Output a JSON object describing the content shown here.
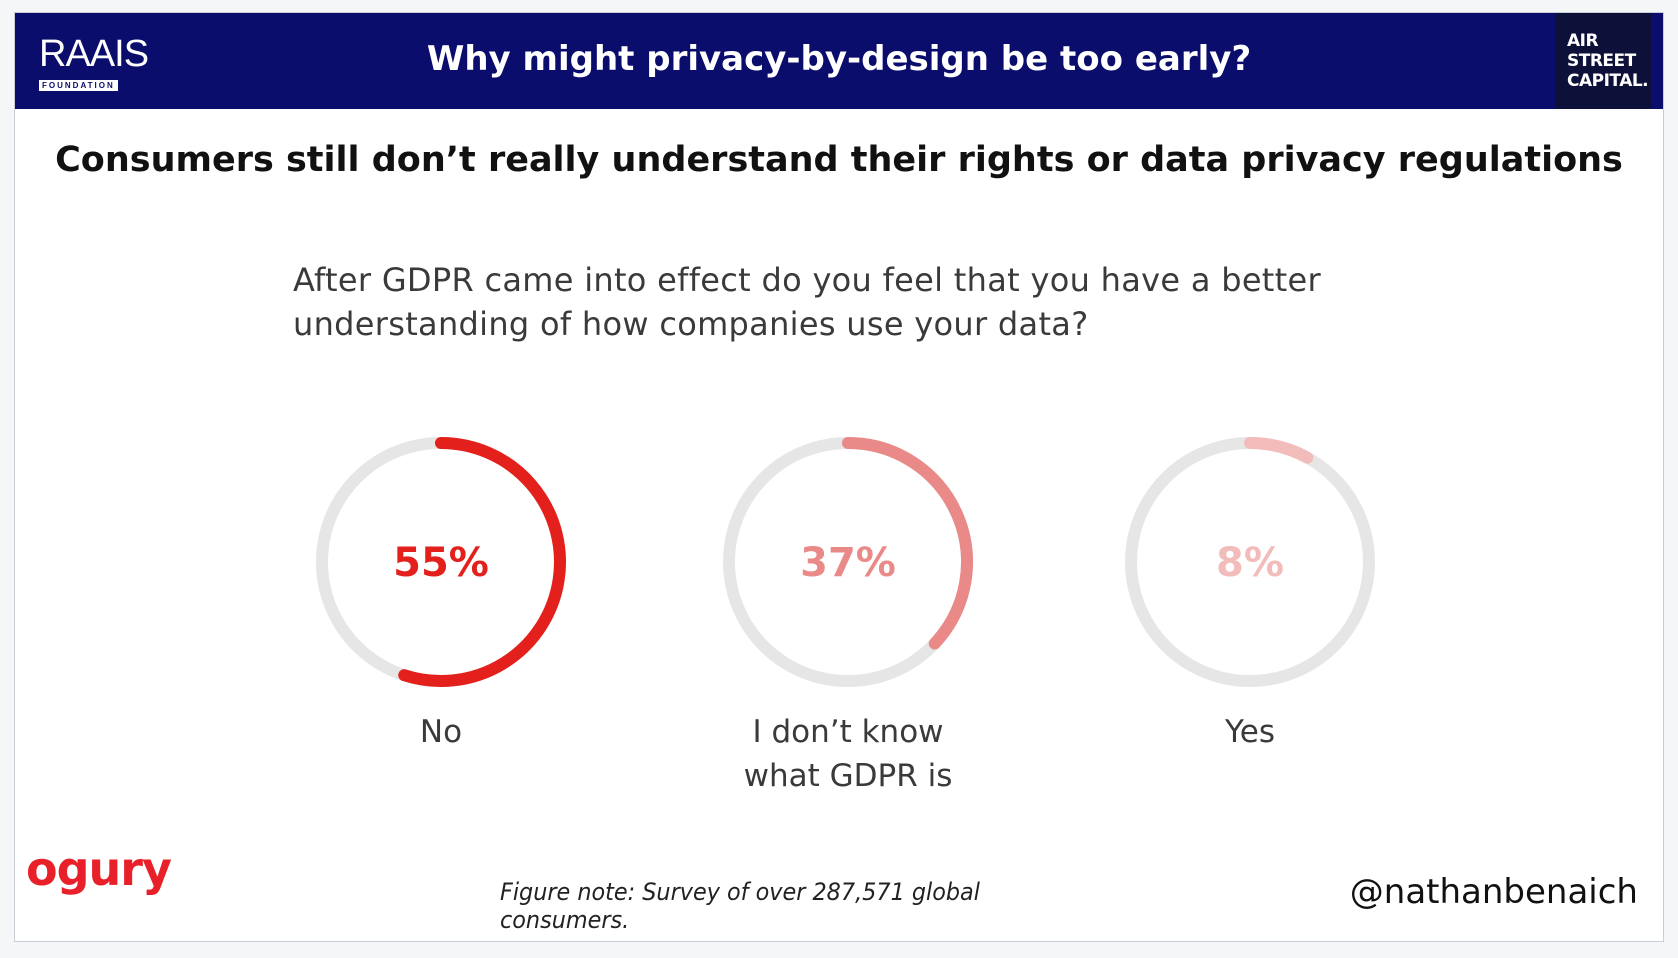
{
  "header": {
    "title": "Why might privacy-by-design be too early?",
    "left_logo": {
      "text": "RAAIS",
      "subtext": "FOUNDATION"
    },
    "right_logo": {
      "lines": [
        "AIR",
        "STREET",
        "CAPITAL."
      ]
    }
  },
  "subtitle": "Consumers still don’t really understand their rights or data privacy regulations",
  "question_lines": [
    "After GDPR came into effect do you feel that you have a better",
    "understanding of how companies use your data?"
  ],
  "chart_data": {
    "type": "pie",
    "question": "After GDPR came into effect do you feel that you have a better understanding of how companies use your data?",
    "categories": [
      "No",
      "I don’t know what GDPR is",
      "Yes"
    ],
    "label_lines": [
      [
        "No"
      ],
      [
        "I don’t know",
        "what GDPR is"
      ],
      [
        "Yes"
      ]
    ],
    "values": [
      55,
      37,
      8
    ],
    "value_labels": [
      "55%",
      "37%",
      "8%"
    ],
    "colors": [
      "#e3201b",
      "#ea8a88",
      "#f2bcbb"
    ],
    "track_color": "#e6e6e6"
  },
  "footer": {
    "brand": "ogury",
    "note": "Figure note: Survey of over 287,571 global consumers.",
    "handle": "@nathanbenaich"
  }
}
